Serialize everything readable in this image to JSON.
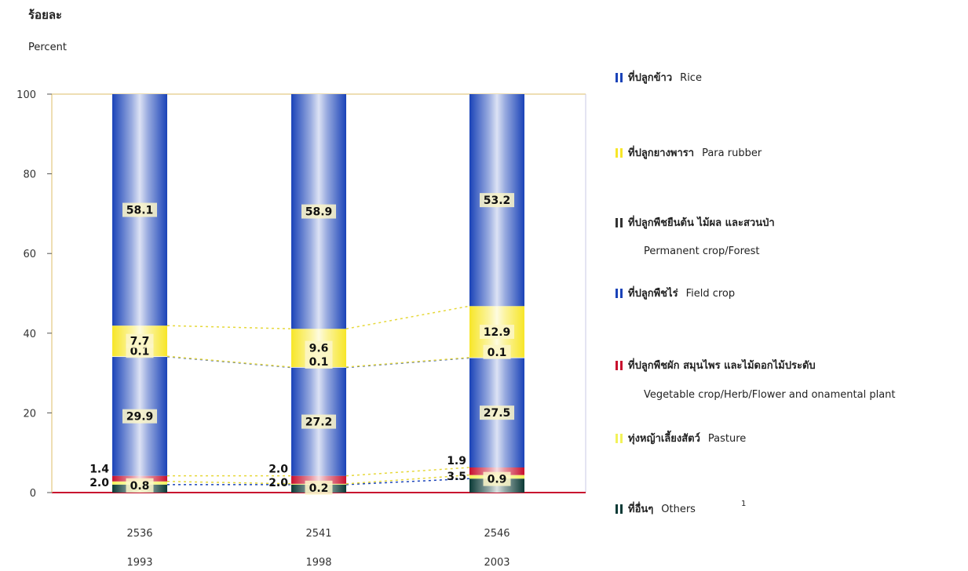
{
  "chart_data": {
    "type": "bar",
    "stacked": true,
    "ylabel_th": "ร้อยละ",
    "ylabel": "Percent",
    "ylim": [
      0,
      100
    ],
    "yticks": [
      0,
      20,
      40,
      60,
      80,
      100
    ],
    "categories": [
      {
        "be": "2536",
        "ce": "1993"
      },
      {
        "be": "2541",
        "ce": "1998"
      },
      {
        "be": "2546",
        "ce": "2003"
      }
    ],
    "series": [
      {
        "key": "others",
        "name_th": "ที่อื่นๆ",
        "name": "Others",
        "note_mark": "1",
        "color": "#0b3a36",
        "values": [
          2.0,
          2.0,
          3.5
        ],
        "labels": [
          "2.0",
          "2.0",
          "3.5"
        ]
      },
      {
        "key": "pasture",
        "name_th": "ทุ่งหญ้าเลี้ยงสัตว์",
        "name": "Pasture",
        "color": "#f2f25a",
        "values": [
          0.8,
          0.2,
          0.9
        ],
        "labels": [
          "0.8",
          "0.2",
          "0.9"
        ]
      },
      {
        "key": "vegetable",
        "name_th": "ที่ปลูกพืชผัก สมุนไพร และไม้ดอกไม้ประดับ",
        "name": "Vegetable crop/Herb/Flower and onamental plant",
        "color": "#c8102e",
        "values": [
          1.4,
          2.0,
          1.9
        ],
        "labels": [
          "1.4",
          "2.0",
          "1.9"
        ]
      },
      {
        "key": "field",
        "name_th": "ที่ปลูกพืชไร่",
        "name": "Field crop",
        "color": "#1a43b8",
        "values": [
          29.9,
          27.2,
          27.5
        ],
        "labels": [
          "29.9",
          "27.2",
          "27.5"
        ]
      },
      {
        "key": "permanent",
        "name_th": "ที่ปลูกพืชยืนต้น ไม้ผล และสวนป่า",
        "name": "Permanent crop/Forest",
        "color": "#ffffff",
        "values": [
          0.1,
          0.1,
          0.1
        ],
        "labels": [
          "0.1",
          "0.1",
          "0.1"
        ]
      },
      {
        "key": "rubber",
        "name_th": "ที่ปลูกยางพารา",
        "name": "Para rubber",
        "color": "#f7e628",
        "values": [
          7.7,
          9.6,
          12.9
        ],
        "labels": [
          "7.7",
          "9.6",
          "12.9"
        ]
      },
      {
        "key": "rice",
        "name_th": "ที่ปลูกข้าว",
        "name": "Rice",
        "color": "#1a43b8",
        "values": [
          58.1,
          58.9,
          53.2
        ],
        "labels": [
          "58.1",
          "58.9",
          "53.2"
        ]
      }
    ],
    "legend_order": [
      "rice",
      "rubber",
      "permanent",
      "field",
      "vegetable",
      "pasture",
      "others"
    ],
    "legend_position": "right",
    "grid": false
  }
}
